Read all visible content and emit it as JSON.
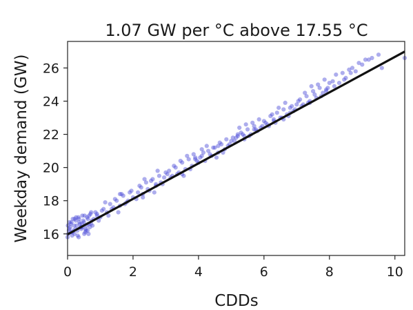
{
  "chart_data": {
    "type": "scatter",
    "title": "1.07 GW per °C above 17.55 °C",
    "xlabel": "CDDs",
    "ylabel": "Weekday demand (GW)",
    "xlim": [
      0,
      10.3
    ],
    "ylim": [
      14.7,
      27.6
    ],
    "xticks": [
      0,
      2,
      4,
      6,
      8,
      10
    ],
    "yticks": [
      16,
      18,
      20,
      22,
      24,
      26
    ],
    "xtick_labels": [
      "0",
      "2",
      "4",
      "6",
      "8",
      "10"
    ],
    "ytick_labels": [
      "16",
      "18",
      "20",
      "22",
      "24",
      "26"
    ],
    "grid": false,
    "legend": "none",
    "colors": {
      "points": "#4a4ad6",
      "fit_line": "#111111",
      "axis": "#222222"
    },
    "fit_line": {
      "x": [
        0,
        10.3
      ],
      "y": [
        15.97,
        26.99
      ]
    },
    "points": {
      "x": [
        0.0,
        0.05,
        0.1,
        0.15,
        0.2,
        0.25,
        0.3,
        0.35,
        0.4,
        0.45,
        0.5,
        0.55,
        0.6,
        0.65,
        0.7,
        0.02,
        0.08,
        0.12,
        0.18,
        0.22,
        0.28,
        0.33,
        0.38,
        0.42,
        0.48,
        0.52,
        0.58,
        0.62,
        0.68,
        0.72,
        0.04,
        0.14,
        0.24,
        0.34,
        0.44,
        0.54,
        0.64,
        0.74,
        0.06,
        0.16,
        0.26,
        0.36,
        0.46,
        0.56,
        0.66,
        0.76,
        0.01,
        0.11,
        0.21,
        0.31,
        0.41,
        0.51,
        0.61,
        0.71,
        0.8,
        0.9,
        1.0,
        1.1,
        1.2,
        1.3,
        1.4,
        1.5,
        1.6,
        1.7,
        1.8,
        1.9,
        2.0,
        0.85,
        0.95,
        1.05,
        1.15,
        1.25,
        1.35,
        1.45,
        1.55,
        1.65,
        1.75,
        1.85,
        1.95,
        2.1,
        2.2,
        2.3,
        2.4,
        2.5,
        2.6,
        2.7,
        2.8,
        2.9,
        3.0,
        2.15,
        2.25,
        2.35,
        2.45,
        2.55,
        2.65,
        2.75,
        2.85,
        2.95,
        3.05,
        3.1,
        3.2,
        3.3,
        3.4,
        3.5,
        3.6,
        3.7,
        3.8,
        3.9,
        4.0,
        3.15,
        3.25,
        3.35,
        3.45,
        3.55,
        3.65,
        3.75,
        3.85,
        3.95,
        4.05,
        4.1,
        4.2,
        4.3,
        4.4,
        4.5,
        4.6,
        4.7,
        4.8,
        4.9,
        5.0,
        4.15,
        4.25,
        4.35,
        4.45,
        4.55,
        4.65,
        4.75,
        4.85,
        4.95,
        5.05,
        5.1,
        5.2,
        5.3,
        5.4,
        5.5,
        5.6,
        5.7,
        5.8,
        5.9,
        6.0,
        5.15,
        5.25,
        5.35,
        5.45,
        5.55,
        5.65,
        5.75,
        5.85,
        5.95,
        6.05,
        6.1,
        6.2,
        6.3,
        6.4,
        6.5,
        6.6,
        6.7,
        6.8,
        6.9,
        7.0,
        6.15,
        6.25,
        6.35,
        6.45,
        6.55,
        6.65,
        6.75,
        6.85,
        6.95,
        7.05,
        7.1,
        7.2,
        7.3,
        7.4,
        7.5,
        7.6,
        7.7,
        7.8,
        7.9,
        8.0,
        7.15,
        7.25,
        7.35,
        7.45,
        7.55,
        7.65,
        7.75,
        7.85,
        7.95,
        8.1,
        8.2,
        8.3,
        8.4,
        8.5,
        8.6,
        8.7,
        8.8,
        9.0,
        9.2,
        9.3,
        9.5,
        9.6,
        10.3,
        8.15,
        8.45,
        8.65,
        8.9,
        9.1,
        2.3,
        3.5,
        4.6,
        5.2,
        6.3,
        7.4,
        1.6,
        0.9,
        2.7,
        3.9,
        5.7,
        6.8,
        7.9,
        4.1,
        5.4,
        6.6
      ],
      "y": [
        15.8,
        16.3,
        16.6,
        16.1,
        16.5,
        16.8,
        16.2,
        16.9,
        16.4,
        17.1,
        16.7,
        16.3,
        17.0,
        16.6,
        17.2,
        16.0,
        16.4,
        16.7,
        16.2,
        16.9,
        16.5,
        17.0,
        16.6,
        16.3,
        16.8,
        17.1,
        16.5,
        16.9,
        16.4,
        17.3,
        16.2,
        15.9,
        16.3,
        15.8,
        16.6,
        16.1,
        16.0,
        16.8,
        16.7,
        16.9,
        17.0,
        16.7,
        16.4,
        16.2,
        17.1,
        16.5,
        16.5,
        16.1,
        16.0,
        15.9,
        16.4,
        16.0,
        16.2,
        16.6,
        16.9,
        17.2,
        17.0,
        17.5,
        17.3,
        17.8,
        17.6,
        18.0,
        17.7,
        18.3,
        17.9,
        18.5,
        18.2,
        17.3,
        16.8,
        17.4,
        17.9,
        17.1,
        17.5,
        18.1,
        17.3,
        18.4,
        17.8,
        18.0,
        18.6,
        18.1,
        18.9,
        18.4,
        19.1,
        18.6,
        19.3,
        18.9,
        19.5,
        19.0,
        19.7,
        18.5,
        18.8,
        19.3,
        18.7,
        19.2,
        18.5,
        19.8,
        19.1,
        19.4,
        19.6,
        19.8,
        19.5,
        20.0,
        19.7,
        20.3,
        19.9,
        20.5,
        20.1,
        20.6,
        20.3,
        19.4,
        20.1,
        19.6,
        20.4,
        19.5,
        20.7,
        19.9,
        20.8,
        20.4,
        20.6,
        20.7,
        20.4,
        21.0,
        20.7,
        21.2,
        20.9,
        21.4,
        21.1,
        21.3,
        21.6,
        20.9,
        21.3,
        20.8,
        21.2,
        20.6,
        21.5,
        20.9,
        21.7,
        21.4,
        21.8,
        21.6,
        21.9,
        22.1,
        21.7,
        22.3,
        22.0,
        22.5,
        22.2,
        22.4,
        22.8,
        21.8,
        22.4,
        22.0,
        22.6,
        21.9,
        22.7,
        22.3,
        22.9,
        22.5,
        22.7,
        22.6,
        23.1,
        22.8,
        23.3,
        23.0,
        23.5,
        23.2,
        23.6,
        23.4,
        23.8,
        22.5,
        23.2,
        22.7,
        23.6,
        23.0,
        23.9,
        23.1,
        23.7,
        23.5,
        24.0,
        24.1,
        23.8,
        24.3,
        24.0,
        24.6,
        24.2,
        24.8,
        24.5,
        24.7,
        25.1,
        23.7,
        24.5,
        23.9,
        24.9,
        24.4,
        25.0,
        24.3,
        25.3,
        24.8,
        25.2,
        25.6,
        25.1,
        25.7,
        25.4,
        25.9,
        26.0,
        25.8,
        26.2,
        26.5,
        26.6,
        26.8,
        26.0,
        26.6,
        24.9,
        25.3,
        25.7,
        26.3,
        26.5,
        18.2,
        19.6,
        21.3,
        22.0,
        22.9,
        23.9,
        18.4,
        17.1,
        19.0,
        20.5,
        22.3,
        23.3,
        24.6,
        21.1,
        21.9,
        22.9
      ]
    }
  }
}
